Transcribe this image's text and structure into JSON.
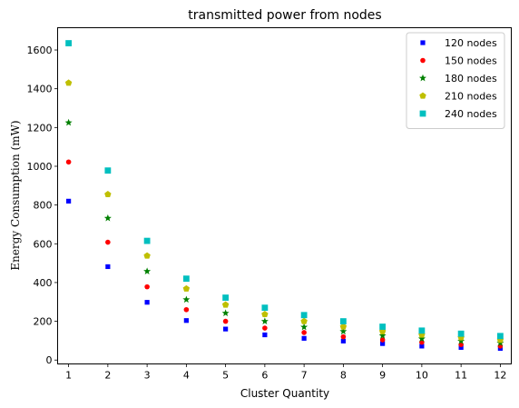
{
  "chart_data": {
    "type": "scatter",
    "title": "transmitted power from nodes",
    "xlabel": "Cluster Quantity",
    "ylabel": "Energy Consumption (mW)",
    "x": [
      1,
      2,
      3,
      4,
      5,
      6,
      7,
      8,
      9,
      10,
      11,
      12
    ],
    "xlim": [
      0.72,
      12.28
    ],
    "ylim": [
      -20,
      1715
    ],
    "xticks": [
      "1",
      "2",
      "3",
      "4",
      "5",
      "6",
      "7",
      "8",
      "9",
      "10",
      "11",
      "12"
    ],
    "yticks": [
      "0",
      "200",
      "400",
      "600",
      "800",
      "1000",
      "1200",
      "1400",
      "1600"
    ],
    "grid": false,
    "legend_position": "top-right",
    "series": [
      {
        "name": "120 nodes",
        "marker": "square-small",
        "color": "#0000ff",
        "values": [
          820,
          482,
          298,
          204,
          160,
          130,
          112,
          98,
          85,
          72,
          65,
          60
        ]
      },
      {
        "name": "150 nodes",
        "marker": "circle",
        "color": "#ff0000",
        "values": [
          1022,
          608,
          378,
          260,
          200,
          165,
          142,
          120,
          104,
          92,
          80,
          72
        ]
      },
      {
        "name": "180 nodes",
        "marker": "star",
        "color": "#008000",
        "values": [
          1225,
          732,
          458,
          312,
          242,
          200,
          170,
          148,
          126,
          110,
          98,
          88
        ]
      },
      {
        "name": "210 nodes",
        "marker": "pentagon",
        "color": "#bfbf00",
        "values": [
          1430,
          855,
          538,
          368,
          285,
          236,
          200,
          172,
          148,
          130,
          116,
          104
        ]
      },
      {
        "name": "240 nodes",
        "marker": "square",
        "color": "#00bfbf",
        "values": [
          1635,
          978,
          615,
          420,
          322,
          270,
          232,
          200,
          172,
          152,
          136,
          124
        ]
      }
    ]
  }
}
